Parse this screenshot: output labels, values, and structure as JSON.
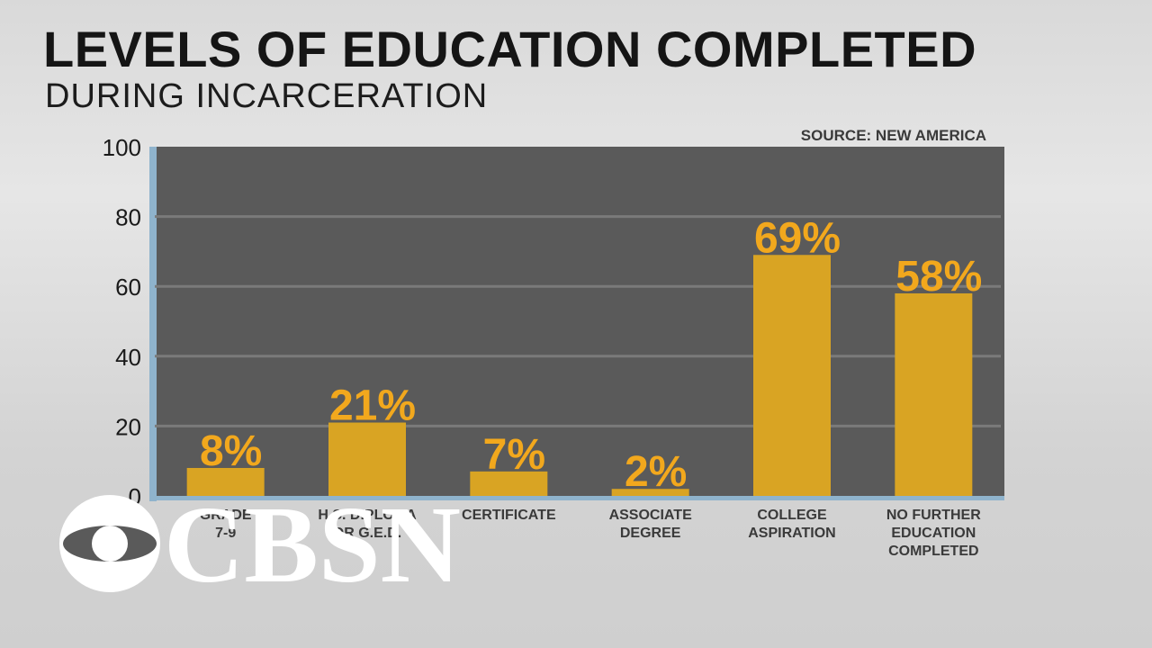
{
  "title": "LEVELS OF EDUCATION COMPLETED",
  "subtitle": "DURING INCARCERATION",
  "source": "SOURCE: NEW AMERICA",
  "logo_text": "CBSN",
  "colors": {
    "bar": "#d9a423",
    "label": "#f2a81d",
    "plot_bg": "#5a5a5a",
    "axis": "#8fb3cc",
    "grid": "#7a7a7a"
  },
  "chart_data": {
    "type": "bar",
    "title": "LEVELS OF EDUCATION COMPLETED",
    "subtitle": "DURING INCARCERATION",
    "categories": [
      [
        "GRADE",
        "7-9"
      ],
      [
        "H.S. DIPLOMA",
        "OR G.E.D."
      ],
      [
        "CERTIFICATE"
      ],
      [
        "ASSOCIATE",
        "DEGREE"
      ],
      [
        "COLLEGE",
        "ASPIRATION"
      ],
      [
        "NO FURTHER",
        "EDUCATION",
        "COMPLETED"
      ]
    ],
    "values": [
      8,
      21,
      7,
      2,
      69,
      58
    ],
    "value_labels": [
      "8%",
      "21%",
      "7%",
      "2%",
      "69%",
      "58%"
    ],
    "yticks": [
      "0",
      "20",
      "40",
      "60",
      "80",
      "100"
    ],
    "ylim": [
      0,
      100
    ],
    "grid": true
  }
}
